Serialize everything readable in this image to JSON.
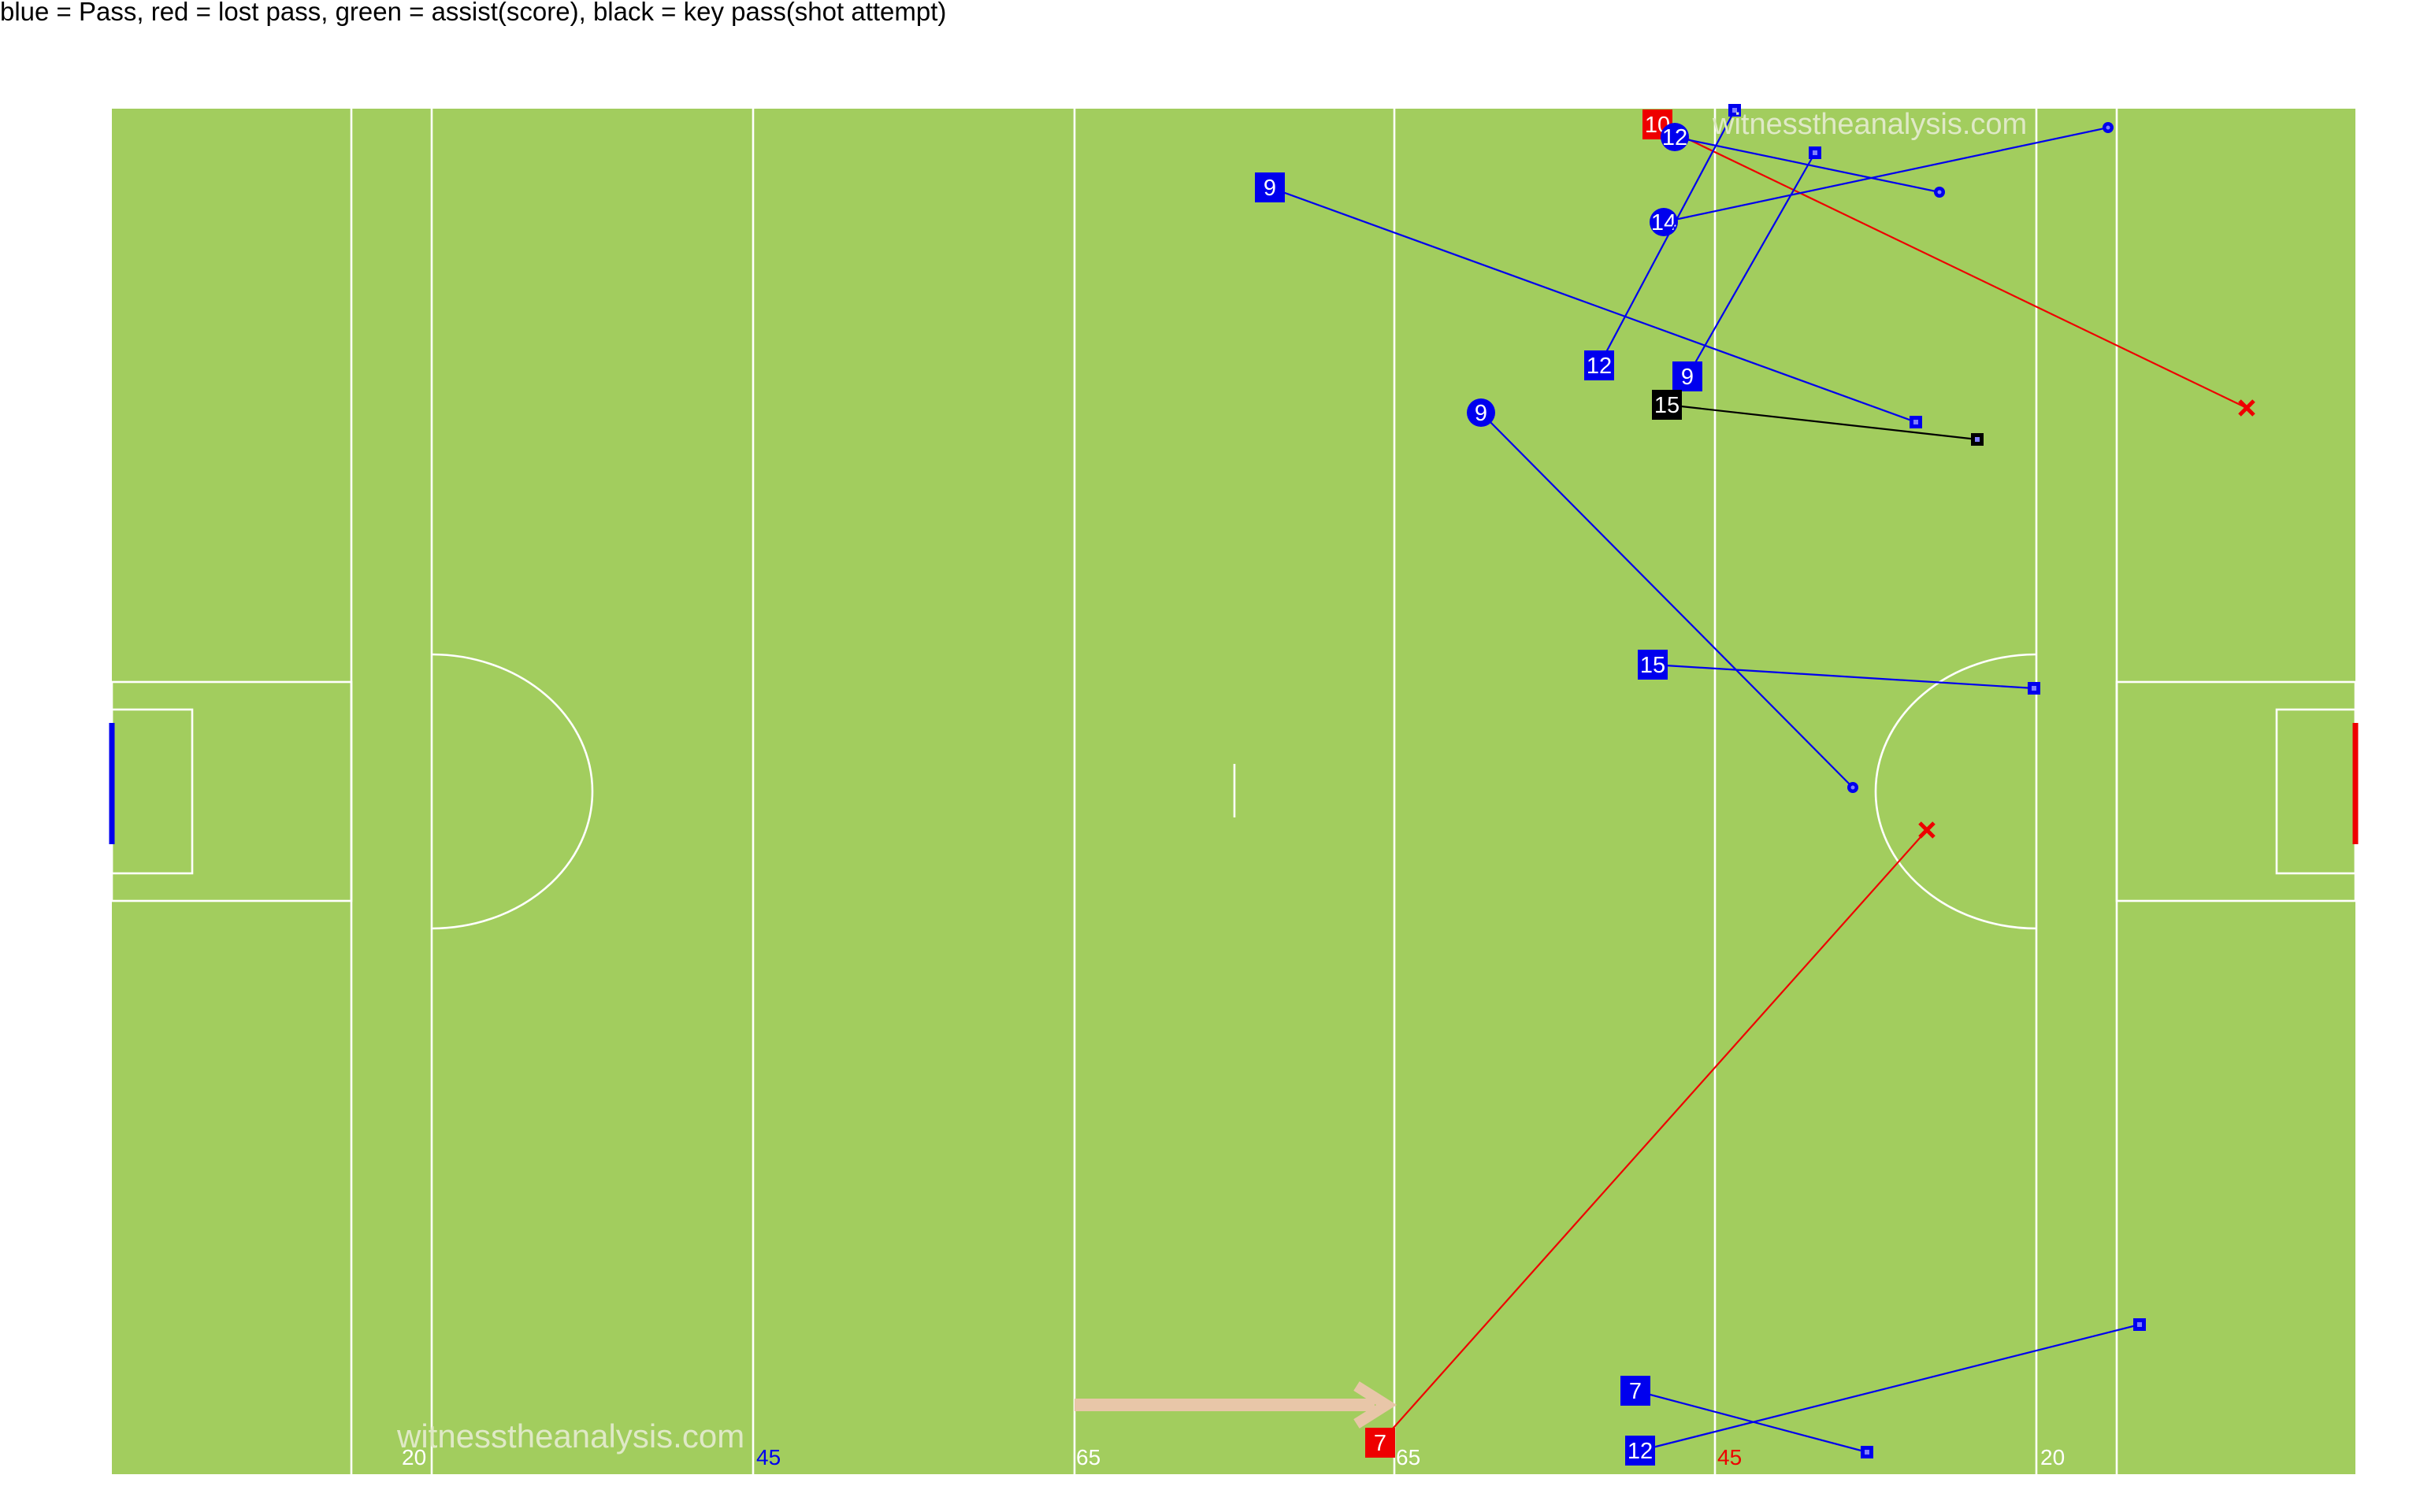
{
  "legend": "blue = Pass, red = lost pass, green = assist(score), black = key pass(shot attempt)",
  "watermark": "witnesstheanalysis.com",
  "colors": {
    "grass": "#a2cd5e",
    "lines": "#ffffff",
    "pass": "#0000ee",
    "lost_pass": "#ee0000",
    "key_pass": "#000000",
    "assist": "#00aa00",
    "direction_arrow": "#e8c6a8",
    "left_goal": "#0000ee",
    "right_goal": "#ee0000",
    "label_text": "#ffffff",
    "watermark": "#dfe9c6"
  },
  "pitch_labels": [
    {
      "text": "20",
      "color": "#ffffff",
      "side": "left"
    },
    {
      "text": "45",
      "color": "#0000ee",
      "side": "left"
    },
    {
      "text": "65",
      "color": "#ffffff",
      "side": "left"
    },
    {
      "text": "65",
      "color": "#ffffff",
      "side": "right"
    },
    {
      "text": "45",
      "color": "#ee0000",
      "side": "right"
    },
    {
      "text": "20",
      "color": "#ffffff",
      "side": "right"
    }
  ],
  "passes": [
    {
      "player": "10",
      "type": "lost_pass",
      "from_marker": "square",
      "end_marker": "x"
    },
    {
      "player": "12",
      "type": "pass",
      "from_marker": "circle",
      "end_marker": "circle"
    },
    {
      "player": "9",
      "type": "pass",
      "from_marker": "square",
      "end_marker": "square"
    },
    {
      "player": "14",
      "type": "pass",
      "from_marker": "circle",
      "end_marker": "circle"
    },
    {
      "player": "12",
      "type": "pass",
      "from_marker": "square",
      "end_marker": "square"
    },
    {
      "player": "9",
      "type": "pass",
      "from_marker": "square",
      "end_marker": "square"
    },
    {
      "player": "15",
      "type": "key_pass",
      "from_marker": "square",
      "end_marker": "square"
    },
    {
      "player": "9",
      "type": "pass",
      "from_marker": "circle",
      "end_marker": "circle"
    },
    {
      "player": "15",
      "type": "pass",
      "from_marker": "square",
      "end_marker": "square"
    },
    {
      "player": "7",
      "type": "lost_pass",
      "from_marker": "square",
      "end_marker": "x"
    },
    {
      "player": "7",
      "type": "pass",
      "from_marker": "square",
      "end_marker": "square"
    },
    {
      "player": "12",
      "type": "pass",
      "from_marker": "square",
      "end_marker": "square"
    }
  ]
}
